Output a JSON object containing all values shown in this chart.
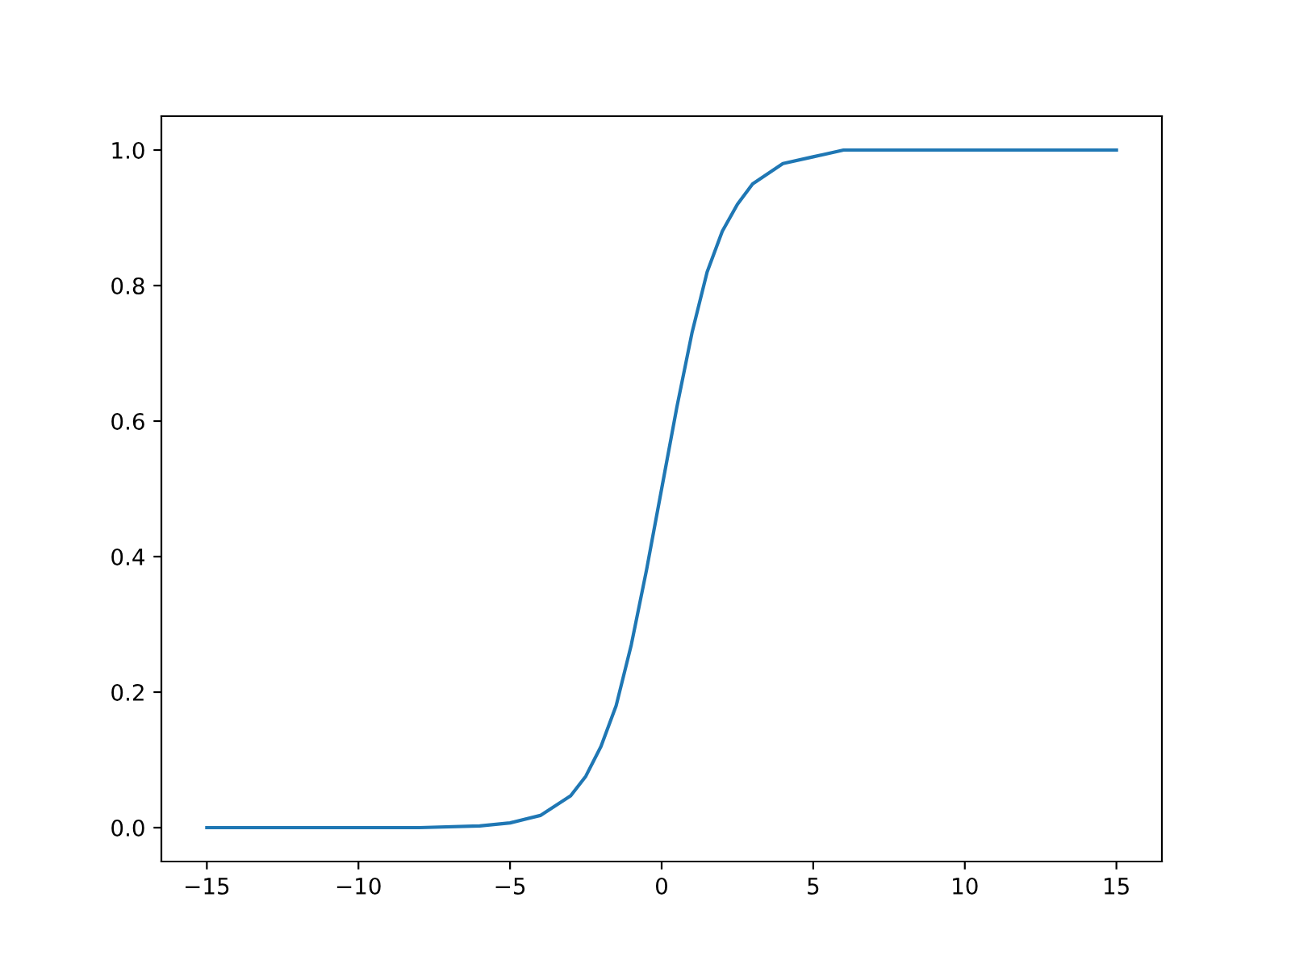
{
  "chart_data": {
    "type": "line",
    "x": [
      -15,
      -10,
      -8,
      -6,
      -5,
      -4,
      -3,
      -2.5,
      -2,
      -1.5,
      -1,
      -0.5,
      0,
      0.5,
      1,
      1.5,
      2,
      2.5,
      3,
      4,
      5,
      6,
      8,
      10,
      15
    ],
    "series": [
      {
        "color": "#1f77b4",
        "values": [
          0.0,
          0.0,
          0.0,
          0.0025,
          0.007,
          0.018,
          0.047,
          0.076,
          0.12,
          0.18,
          0.27,
          0.38,
          0.5,
          0.62,
          0.73,
          0.82,
          0.88,
          0.92,
          0.95,
          0.98,
          0.99,
          1.0,
          1.0,
          1.0,
          1.0
        ]
      }
    ],
    "xlim": [
      -16.5,
      16.5
    ],
    "ylim": [
      -0.05,
      1.05
    ],
    "xticks": [
      {
        "value": -15,
        "label": "−15"
      },
      {
        "value": -10,
        "label": "−10"
      },
      {
        "value": -5,
        "label": "−5"
      },
      0,
      5,
      10,
      15
    ],
    "yticks": [
      {
        "value": 0,
        "label": "0.0"
      },
      {
        "value": 0.2,
        "label": "0.2"
      },
      {
        "value": 0.4,
        "label": "0.4"
      },
      {
        "value": 0.6,
        "label": "0.6"
      },
      {
        "value": 0.8,
        "label": "0.8"
      },
      {
        "value": 1,
        "label": "1.0"
      }
    ],
    "grid": false,
    "legend": false
  }
}
